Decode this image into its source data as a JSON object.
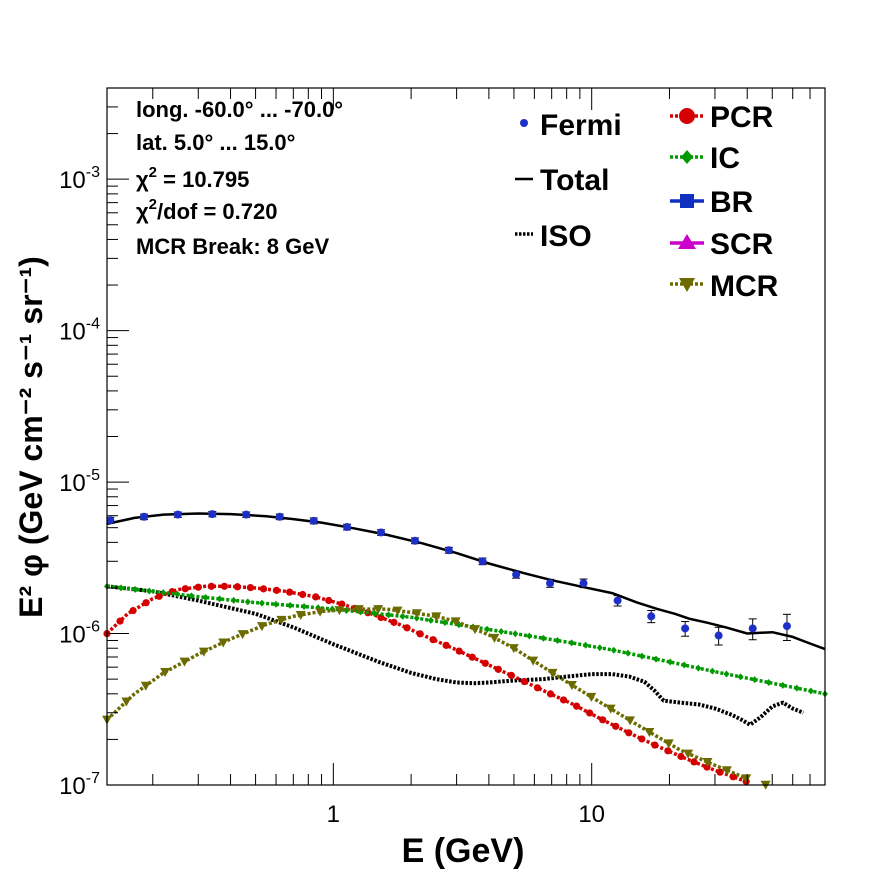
{
  "chart_data": {
    "type": "line",
    "x_scale": "log",
    "y_scale": "log",
    "xlim": [
      0.133,
      80.0
    ],
    "ylim": [
      1e-07,
      0.004
    ],
    "xlabel": "E (GeV)",
    "ylabel": "E² φ (GeV cm⁻² s⁻¹ sr⁻¹)",
    "x_ticks": [
      {
        "v": 1,
        "label": "1"
      },
      {
        "v": 10,
        "label": "10"
      }
    ],
    "y_ticks": [
      {
        "v": 1e-07,
        "base": "10",
        "exp": "-7"
      },
      {
        "v": 1e-06,
        "base": "10",
        "exp": "-6"
      },
      {
        "v": 1e-05,
        "base": "10",
        "exp": "-5"
      },
      {
        "v": 0.0001,
        "base": "10",
        "exp": "-4"
      },
      {
        "v": 0.001,
        "base": "10",
        "exp": "-3"
      }
    ],
    "info_box": {
      "line1": "long. -60.0° ... -70.0°",
      "line2": "lat. 5.0° ... 15.0°",
      "chi2_sym": "χ",
      "chi2_sup": "2",
      "chi2_val": " = 10.795",
      "chi2dof_sym": "χ",
      "chi2dof_sup": "2",
      "chi2dof_val": "/dof = 0.720",
      "line5": "MCR Break:  8 GeV"
    },
    "legend_left": {
      "fermi": "Fermi",
      "total": "Total",
      "iso": "ISO"
    },
    "legend_right": {
      "pcr": "PCR",
      "ic": "IC",
      "br": "BR",
      "scr": "SCR",
      "mcr": "MCR"
    },
    "colors": {
      "fermi": "#1e2fc8",
      "total": "#000000",
      "iso": "#000000",
      "pcr": "#d40000",
      "ic": "#009a00",
      "br": "#1030c0",
      "scr": "#cc00cc",
      "mcr": "#6b6b00"
    },
    "fermi_points": [
      {
        "x": 0.137,
        "y": 5.6e-06,
        "err": 2.5e-07
      },
      {
        "x": 0.185,
        "y": 5.9e-06,
        "err": 2.5e-07
      },
      {
        "x": 0.25,
        "y": 6.1e-06,
        "err": 2.5e-07
      },
      {
        "x": 0.34,
        "y": 6.15e-06,
        "err": 2.5e-07
      },
      {
        "x": 0.46,
        "y": 6.1e-06,
        "err": 2.5e-07
      },
      {
        "x": 0.62,
        "y": 5.9e-06,
        "err": 2.5e-07
      },
      {
        "x": 0.84,
        "y": 5.55e-06,
        "err": 2.5e-07
      },
      {
        "x": 1.13,
        "y": 5.05e-06,
        "err": 2.2e-07
      },
      {
        "x": 1.53,
        "y": 4.65e-06,
        "err": 2e-07
      },
      {
        "x": 2.07,
        "y": 4.1e-06,
        "err": 1.8e-07
      },
      {
        "x": 2.8,
        "y": 3.55e-06,
        "err": 1.6e-07
      },
      {
        "x": 3.78,
        "y": 3e-06,
        "err": 1.5e-07
      },
      {
        "x": 5.1,
        "y": 2.45e-06,
        "err": 1.3e-07
      },
      {
        "x": 6.9,
        "y": 2.15e-06,
        "err": 1.3e-07
      },
      {
        "x": 9.3,
        "y": 2.15e-06,
        "err": 1.4e-07
      },
      {
        "x": 12.6,
        "y": 1.65e-06,
        "err": 1.3e-07
      },
      {
        "x": 17.0,
        "y": 1.3e-06,
        "err": 1.2e-07
      },
      {
        "x": 23.0,
        "y": 1.08e-06,
        "err": 1.2e-07
      },
      {
        "x": 31.0,
        "y": 9.7e-07,
        "err": 1.3e-07
      },
      {
        "x": 42.0,
        "y": 1.08e-06,
        "err": 1.7e-07
      },
      {
        "x": 57.0,
        "y": 1.12e-06,
        "err": 2.2e-07
      }
    ],
    "series": [
      {
        "key": "total",
        "x": [
          0.133,
          0.17,
          0.22,
          0.3,
          0.4,
          0.55,
          0.7,
          0.9,
          1.2,
          1.6,
          2.2,
          3.0,
          4.0,
          5.5,
          7.0,
          9.0,
          12.0,
          15.0,
          18.0,
          21.0,
          24.0,
          28.0,
          33.0,
          40.0,
          50.0,
          60.0,
          70.0,
          80.0
        ],
        "y": [
          5.3e-06,
          5.8e-06,
          6.1e-06,
          6.2e-06,
          6.15e-06,
          5.95e-06,
          5.7e-06,
          5.4e-06,
          4.95e-06,
          4.5e-06,
          3.95e-06,
          3.4e-06,
          2.9e-06,
          2.5e-06,
          2.25e-06,
          2.05e-06,
          1.85e-06,
          1.6e-06,
          1.45e-06,
          1.35e-06,
          1.25e-06,
          1.18e-06,
          1.1e-06,
          1e-06,
          1.02e-06,
          9.5e-07,
          8.6e-07,
          7.9e-07
        ]
      },
      {
        "key": "iso",
        "x": [
          0.133,
          0.2,
          0.3,
          0.5,
          0.7,
          1.0,
          1.5,
          2.0,
          2.5,
          3.0,
          3.5,
          4.0,
          5.0,
          6.5,
          8.0,
          10.0,
          12.0,
          14.0,
          16.0,
          17.5,
          19.0,
          22.0,
          26.0,
          30.0,
          35.0,
          38.0,
          41.0,
          45.0,
          50.0,
          55.0,
          60.0,
          66.0
        ],
        "y": [
          2.05e-06,
          1.9e-06,
          1.65e-06,
          1.35e-06,
          1.1e-06,
          8.5e-07,
          6.5e-07,
          5.5e-07,
          5e-07,
          4.75e-07,
          4.7e-07,
          4.75e-07,
          4.9e-07,
          5e-07,
          5.2e-07,
          5.4e-07,
          5.4e-07,
          5.2e-07,
          4.8e-07,
          4.2e-07,
          3.6e-07,
          3.5e-07,
          3.4e-07,
          3.2e-07,
          2.9e-07,
          2.7e-07,
          2.5e-07,
          2.8e-07,
          3.3e-07,
          3.5e-07,
          3.2e-07,
          3e-07
        ]
      },
      {
        "key": "pcr",
        "marker": "circle",
        "x": [
          0.133,
          0.16,
          0.2,
          0.25,
          0.32,
          0.4,
          0.5,
          0.65,
          0.85,
          1.1,
          1.4,
          1.8,
          2.3,
          3.0,
          4.0,
          5.0,
          6.5,
          8.5,
          11.0,
          14.0,
          18.0,
          23.0,
          30.0,
          40.0,
          50.0
        ],
        "y": [
          1e-06,
          1.35e-06,
          1.7e-06,
          1.95e-06,
          2.05e-06,
          2.05e-06,
          2e-06,
          1.9e-06,
          1.75e-06,
          1.55e-06,
          1.35e-06,
          1.15e-06,
          9.5e-07,
          7.8e-07,
          6.2e-07,
          5.2e-07,
          4.2e-07,
          3.4e-07,
          2.7e-07,
          2.2e-07,
          1.8e-07,
          1.5e-07,
          1.25e-07,
          1.05e-07,
          9.2e-08
        ]
      },
      {
        "key": "ic",
        "marker": "diamond",
        "x": [
          0.133,
          0.2,
          0.3,
          0.5,
          0.8,
          1.0,
          1.5,
          2.0,
          3.0,
          5.0,
          8.0,
          12.0,
          20.0,
          30.0,
          50.0,
          80.0
        ],
        "y": [
          2.05e-06,
          1.9e-06,
          1.75e-06,
          1.6e-06,
          1.5e-06,
          1.45e-06,
          1.35e-06,
          1.28e-06,
          1.15e-06,
          1e-06,
          8.8e-07,
          7.8e-07,
          6.5e-07,
          5.6e-07,
          4.7e-07,
          4e-07
        ]
      },
      {
        "key": "mcr",
        "marker": "triangle-down",
        "x": [
          0.133,
          0.17,
          0.22,
          0.3,
          0.4,
          0.55,
          0.7,
          0.9,
          1.2,
          1.6,
          2.0,
          2.5,
          3.0,
          4.0,
          5.0,
          6.5,
          8.0,
          10.0,
          13.0,
          17.0,
          22.0,
          30.0,
          40.0,
          50.0,
          56.0
        ],
        "y": [
          2.7e-07,
          4e-07,
          5.5e-07,
          7.3e-07,
          9.2e-07,
          1.15e-06,
          1.3e-06,
          1.4e-06,
          1.45e-06,
          1.45e-06,
          1.38e-06,
          1.3e-06,
          1.2e-06,
          9.8e-07,
          8e-07,
          6e-07,
          4.8e-07,
          3.8e-07,
          2.9e-07,
          2.2e-07,
          1.7e-07,
          1.35e-07,
          1.1e-07,
          9.7e-08,
          9.4e-08
        ]
      }
    ]
  }
}
